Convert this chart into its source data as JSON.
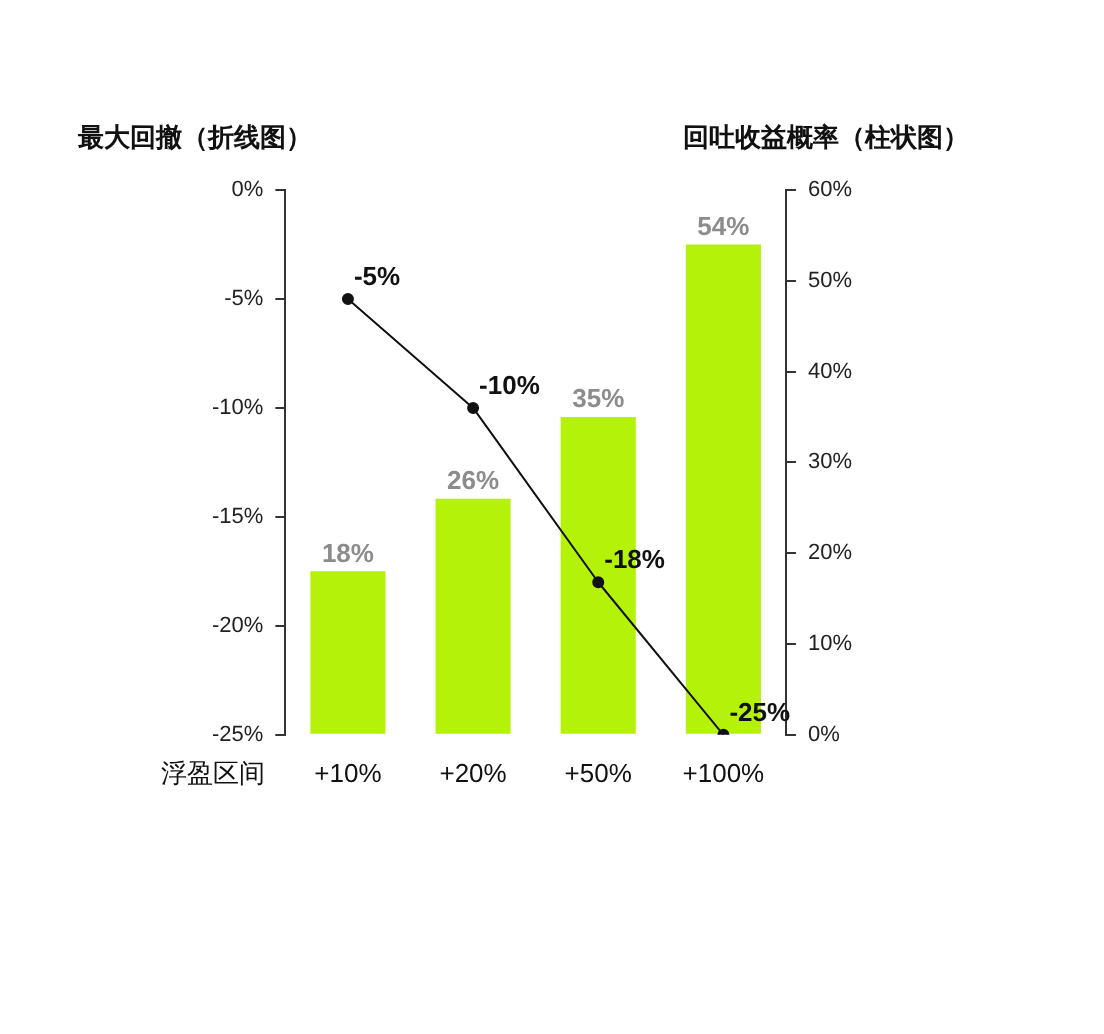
{
  "chart_data": {
    "type": "bar",
    "xlabel": "浮盈区间",
    "ylabel": "最大回撤（折线图）",
    "y2label": "回吐收益概率（柱状图）",
    "categories": [
      "+10%",
      "+20%",
      "+50%",
      "+100%"
    ],
    "series": [
      {
        "axis": "y2",
        "color": "#b4f20a",
        "values": [
          18,
          26,
          35,
          54
        ],
        "value_labels": [
          "18%",
          "26%",
          "35%",
          "54%"
        ]
      },
      {
        "type": "line",
        "axis": "y",
        "color": "#111111",
        "values": [
          -5,
          -10,
          -18,
          -25
        ],
        "value_labels": [
          "-5%",
          "-10%",
          "-18%",
          "-25%"
        ],
        "marker": "circle",
        "line_style": "solid"
      }
    ],
    "ylim": [
      -25,
      0
    ],
    "yticks": [
      {
        "value": 0,
        "label": "0%"
      },
      {
        "value": -5,
        "label": "-5%"
      },
      {
        "value": -10,
        "label": "-10%"
      },
      {
        "value": -15,
        "label": "-15%"
      },
      {
        "value": -20,
        "label": "-20%"
      },
      {
        "value": -25,
        "label": "-25%"
      }
    ],
    "y2lim": [
      0,
      60
    ],
    "y2ticks": [
      {
        "value": 0,
        "label": "0%"
      },
      {
        "value": 10,
        "label": "10%"
      },
      {
        "value": 20,
        "label": "20%"
      },
      {
        "value": 30,
        "label": "30%"
      },
      {
        "value": 40,
        "label": "40%"
      },
      {
        "value": 50,
        "label": "50%"
      },
      {
        "value": 60,
        "label": "60%"
      }
    ],
    "grid": false,
    "legend": false
  }
}
